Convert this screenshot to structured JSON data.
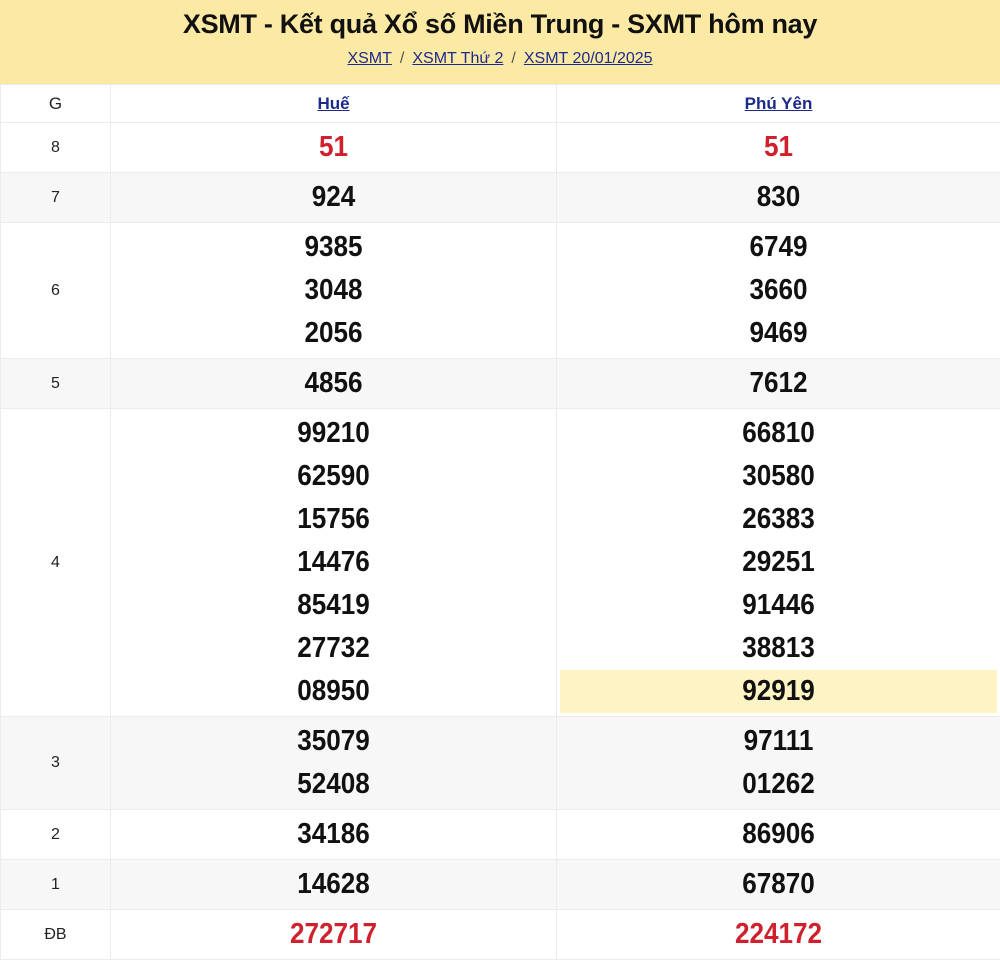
{
  "header": {
    "title": "XSMT - Kết quả Xổ số Miền Trung - SXMT hôm nay",
    "breadcrumb": [
      "XSMT",
      "XSMT Thứ 2",
      "XSMT 20/01/2025"
    ],
    "separator": "/"
  },
  "table": {
    "col_g": "G",
    "provinces": [
      "Huế",
      "Phú Yên"
    ],
    "rows": [
      {
        "g": "8",
        "red": true,
        "values": [
          [
            "51"
          ],
          [
            "51"
          ]
        ]
      },
      {
        "g": "7",
        "values": [
          [
            "924"
          ],
          [
            "830"
          ]
        ]
      },
      {
        "g": "6",
        "values": [
          [
            "9385",
            "3048",
            "2056"
          ],
          [
            "6749",
            "3660",
            "9469"
          ]
        ]
      },
      {
        "g": "5",
        "values": [
          [
            "4856"
          ],
          [
            "7612"
          ]
        ]
      },
      {
        "g": "4",
        "values": [
          [
            "99210",
            "62590",
            "15756",
            "14476",
            "85419",
            "27732",
            "08950"
          ],
          [
            "66810",
            "30580",
            "26383",
            "29251",
            "91446",
            "38813",
            "92919"
          ]
        ]
      },
      {
        "g": "3",
        "values": [
          [
            "35079",
            "52408"
          ],
          [
            "97111",
            "01262"
          ]
        ]
      },
      {
        "g": "2",
        "values": [
          [
            "34186"
          ],
          [
            "86906"
          ]
        ]
      },
      {
        "g": "1",
        "values": [
          [
            "14628"
          ],
          [
            "67870"
          ]
        ]
      },
      {
        "g": "ĐB",
        "red": true,
        "values": [
          [
            "272717"
          ],
          [
            "224172"
          ]
        ]
      }
    ],
    "highlighted": {
      "province_index": 1,
      "row_g": "4",
      "value": "92919"
    },
    "highlight_color": "#fdf3c4",
    "red_color": "#d0202e",
    "header_bg": "#fce9a4"
  }
}
